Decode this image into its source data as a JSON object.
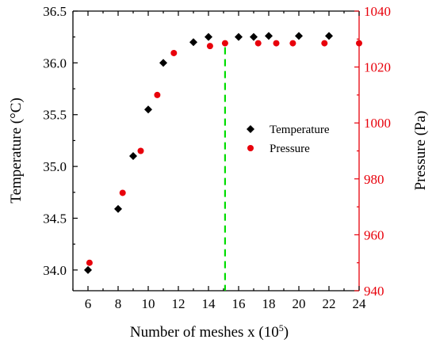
{
  "chart_data": {
    "type": "scatter",
    "xlabel": "Number of meshes x (10",
    "xlabel_exp": "5",
    "xlabel_close": ")",
    "ylabel_left": "Temperature (°C)",
    "ylabel_right": "Pressure (Pa)",
    "xlim": [
      5,
      24
    ],
    "xticks": [
      6,
      8,
      10,
      12,
      14,
      16,
      18,
      20,
      22,
      24
    ],
    "ylim_left": [
      33.8,
      36.5
    ],
    "yticks_left": [
      "34.0",
      "34.5",
      "35.0",
      "35.5",
      "36.0",
      "36.5"
    ],
    "ylim_right": [
      940,
      1040
    ],
    "yticks_right": [
      "940",
      "960",
      "980",
      "1000",
      "1020",
      "1040"
    ],
    "grid": false,
    "legend_position": "right-middle",
    "reference_line": {
      "x": 15.1,
      "color": "#00dd00",
      "style": "dashed"
    },
    "series": [
      {
        "name": "Temperature",
        "axis": "left",
        "marker": "diamond",
        "color": "#000000",
        "x": [
          6,
          8,
          9,
          10,
          11,
          13,
          14,
          16,
          17,
          18,
          20,
          22
        ],
        "y": [
          34.0,
          34.59,
          35.1,
          35.55,
          36.0,
          36.2,
          36.25,
          36.25,
          36.25,
          36.26,
          36.26,
          36.26
        ]
      },
      {
        "name": "Pressure",
        "axis": "right",
        "marker": "circle",
        "color": "#e8000b",
        "x": [
          6.1,
          8.3,
          9.5,
          10.6,
          11.7,
          14.1,
          15.1,
          17.3,
          18.5,
          19.6,
          21.7,
          24
        ],
        "y": [
          950,
          975,
          990,
          1010,
          1025,
          1027.5,
          1028.5,
          1028.5,
          1028.5,
          1028.5,
          1028.5,
          1028.5
        ]
      }
    ]
  }
}
